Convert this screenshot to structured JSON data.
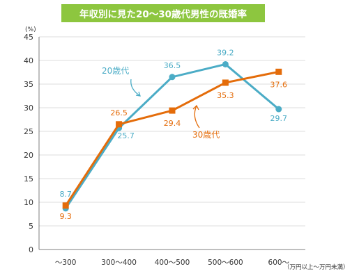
{
  "chart_data": {
    "type": "line",
    "title": "年収別に見た20～30歳代男性の既婚率",
    "ylabel": "(%)",
    "xunit": "（万円以上～万円未満）",
    "ylim": [
      0,
      45
    ],
    "yticks": [
      0,
      5,
      10,
      15,
      20,
      25,
      30,
      35,
      40,
      45
    ],
    "categories": [
      "～300",
      "300～400",
      "400～500",
      "500～600",
      "600～"
    ],
    "grid": "horizontal",
    "series": [
      {
        "name": "20歳代",
        "color": "#4bacc6",
        "marker": "circle",
        "values": [
          8.7,
          25.7,
          36.5,
          39.2,
          29.7
        ],
        "labels": [
          "8.7",
          "25.7",
          "36.5",
          "39.2",
          "29.7"
        ]
      },
      {
        "name": "30歳代",
        "color": "#e46c0a",
        "marker": "square",
        "values": [
          9.3,
          26.5,
          29.4,
          35.3,
          37.6
        ],
        "labels": [
          "9.3",
          "26.5",
          "29.4",
          "35.3",
          "37.6"
        ]
      }
    ]
  }
}
